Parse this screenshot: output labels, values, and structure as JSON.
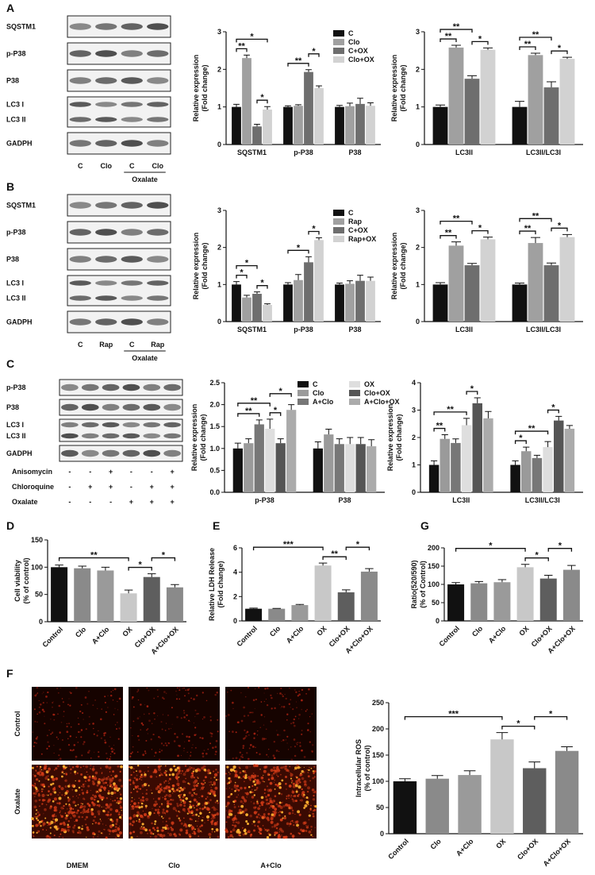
{
  "panel_labels": [
    "A",
    "B",
    "C",
    "D",
    "E",
    "G",
    "F"
  ],
  "blots": [
    {
      "rows": [
        [
          "SQSTM1"
        ],
        [
          "p-P38"
        ],
        [
          "P38"
        ],
        [
          "LC3 I",
          "LC3 II"
        ],
        [
          "GADPH"
        ]
      ],
      "lanes": [
        "C",
        "Clo",
        "C",
        "Clo"
      ],
      "treatment": "Oxalate"
    },
    {
      "rows": [
        [
          "SQSTM1"
        ],
        [
          "p-P38"
        ],
        [
          "P38"
        ],
        [
          "LC3 I",
          "LC3 II"
        ],
        [
          "GADPH"
        ]
      ],
      "lanes": [
        "C",
        "Rap",
        "C",
        "Rap"
      ],
      "treatment": "Oxalate"
    },
    {
      "rows": [
        [
          "p-P38"
        ],
        [
          "P38"
        ],
        [
          "LC3 I",
          "LC3 II"
        ],
        [
          "GADPH"
        ]
      ],
      "conditions": [
        {
          "name": "Anisomycin",
          "signs": [
            "-",
            "-",
            "+",
            "-",
            "-",
            "+"
          ]
        },
        {
          "name": "Chloroquine",
          "signs": [
            "-",
            "+",
            "+",
            "-",
            "+",
            "+"
          ]
        },
        {
          "name": "Oxalate",
          "signs": [
            "-",
            "-",
            "-",
            "+",
            "+",
            "+"
          ]
        }
      ]
    }
  ],
  "micrographs": {
    "rows": [
      "Control",
      "Oxalate"
    ],
    "columns": [
      "DMEM",
      "Clo",
      "A+Clo"
    ]
  },
  "chart_data": [
    {
      "type": "bar",
      "y_label": [
        "Relative expression",
        "(Fold change)"
      ],
      "categories": [
        "SQSTM1",
        "p-P38",
        "P38"
      ],
      "legend": true,
      "series": [
        {
          "name": "C",
          "color": "#111111",
          "values": [
            1.0,
            1.0,
            1.0
          ],
          "errors": [
            0.07,
            0.03,
            0.04
          ]
        },
        {
          "name": "Clo",
          "color": "#a0a0a0",
          "values": [
            2.3,
            1.03,
            1.02
          ],
          "errors": [
            0.08,
            0.03,
            0.08
          ]
        },
        {
          "name": "C+OX",
          "color": "#6e6e6e",
          "values": [
            0.48,
            1.93,
            1.08
          ],
          "errors": [
            0.06,
            0.06,
            0.15
          ]
        },
        {
          "name": "Clo+OX",
          "color": "#d2d2d2",
          "values": [
            0.93,
            1.5,
            1.03
          ],
          "errors": [
            0.08,
            0.06,
            0.08
          ]
        }
      ],
      "ylim": [
        0,
        3
      ],
      "yticks": [
        0,
        1,
        2,
        3
      ],
      "annotations": [
        {
          "text": "**",
          "between": [
            0,
            1
          ]
        },
        {
          "text": "*",
          "between": [
            2,
            3
          ]
        },
        {
          "text": "*",
          "between": [
            0,
            3
          ]
        },
        {
          "text": "**",
          "between": [
            4,
            6
          ]
        },
        {
          "text": "*",
          "between": [
            6,
            7
          ]
        }
      ]
    },
    {
      "type": "bar",
      "y_label": [
        "Relative expression",
        "(Fold change)"
      ],
      "categories": [
        "LC3II",
        "LC3II/LC3I"
      ],
      "legend": false,
      "series": [
        {
          "color": "#111111",
          "values": [
            1.0,
            1.0
          ],
          "errors": [
            0.05,
            0.15
          ]
        },
        {
          "color": "#a0a0a0",
          "values": [
            2.58,
            2.38
          ],
          "errors": [
            0.06,
            0.05
          ]
        },
        {
          "color": "#6e6e6e",
          "values": [
            1.75,
            1.52
          ],
          "errors": [
            0.08,
            0.15
          ]
        },
        {
          "color": "#d2d2d2",
          "values": [
            2.52,
            2.28
          ],
          "errors": [
            0.05,
            0.04
          ]
        }
      ],
      "ylim": [
        0,
        3
      ],
      "yticks": [
        0,
        1,
        2,
        3
      ],
      "annotations": [
        {
          "text": "**",
          "between": [
            0,
            1
          ]
        },
        {
          "text": "*",
          "between": [
            2,
            3
          ]
        },
        {
          "text": "**",
          "between": [
            0,
            2
          ]
        },
        {
          "text": "**",
          "between": [
            4,
            5
          ]
        },
        {
          "text": "*",
          "between": [
            6,
            7
          ]
        },
        {
          "text": "**",
          "between": [
            4,
            6
          ]
        }
      ]
    },
    {
      "type": "bar",
      "y_label": [
        "Relative expression",
        "(Fold change)"
      ],
      "categories": [
        "SQSTM1",
        "p-P38",
        "P38"
      ],
      "legend": true,
      "series": [
        {
          "name": "C",
          "color": "#111111",
          "values": [
            1.0,
            1.0,
            1.0
          ],
          "errors": [
            0.08,
            0.05,
            0.04
          ]
        },
        {
          "name": "Rap",
          "color": "#a0a0a0",
          "values": [
            0.65,
            1.12,
            1.02
          ],
          "errors": [
            0.06,
            0.15,
            0.08
          ]
        },
        {
          "name": "C+OX",
          "color": "#6e6e6e",
          "values": [
            0.75,
            1.6,
            1.1
          ],
          "errors": [
            0.05,
            0.15,
            0.15
          ]
        },
        {
          "name": "Rap+OX",
          "color": "#d2d2d2",
          "values": [
            0.45,
            2.2,
            1.1
          ],
          "errors": [
            0.03,
            0.06,
            0.1
          ]
        }
      ],
      "ylim": [
        0,
        3
      ],
      "yticks": [
        0,
        1,
        2,
        3
      ],
      "annotations": [
        {
          "text": "*",
          "between": [
            0,
            1
          ]
        },
        {
          "text": "*",
          "between": [
            2,
            3
          ]
        },
        {
          "text": "*",
          "between": [
            0,
            2
          ]
        },
        {
          "text": "*",
          "between": [
            4,
            6
          ]
        },
        {
          "text": "*",
          "between": [
            6,
            7
          ]
        }
      ]
    },
    {
      "type": "bar",
      "y_label": [
        "Relative expression",
        "(Fold change)"
      ],
      "categories": [
        "LC3II",
        "LC3II/LC3I"
      ],
      "legend": false,
      "series": [
        {
          "color": "#111111",
          "values": [
            1.0,
            1.0
          ],
          "errors": [
            0.05,
            0.04
          ]
        },
        {
          "color": "#a0a0a0",
          "values": [
            2.05,
            2.12
          ],
          "errors": [
            0.1,
            0.15
          ]
        },
        {
          "color": "#6e6e6e",
          "values": [
            1.52,
            1.52
          ],
          "errors": [
            0.05,
            0.06
          ]
        },
        {
          "color": "#d2d2d2",
          "values": [
            2.22,
            2.28
          ],
          "errors": [
            0.06,
            0.07
          ]
        }
      ],
      "ylim": [
        0,
        3
      ],
      "yticks": [
        0,
        1,
        2,
        3
      ],
      "annotations": [
        {
          "text": "**",
          "between": [
            0,
            1
          ]
        },
        {
          "text": "*",
          "between": [
            2,
            3
          ]
        },
        {
          "text": "**",
          "between": [
            0,
            2
          ]
        },
        {
          "text": "**",
          "between": [
            4,
            5
          ]
        },
        {
          "text": "*",
          "between": [
            6,
            7
          ]
        },
        {
          "text": "**",
          "between": [
            4,
            6
          ]
        }
      ]
    },
    {
      "type": "bar",
      "y_label": [
        "Relative expression",
        "(Fold change)"
      ],
      "categories": [
        "p-P38",
        "P38"
      ],
      "legend": true,
      "legend_columns": 2,
      "series": [
        {
          "name": "C",
          "color": "#111111",
          "values": [
            1.0,
            1.0
          ],
          "errors": [
            0.12,
            0.15
          ]
        },
        {
          "name": "Clo",
          "color": "#9a9a9a",
          "values": [
            1.12,
            1.32
          ],
          "errors": [
            0.1,
            0.12
          ]
        },
        {
          "name": "A+Clo",
          "color": "#777777",
          "values": [
            1.55,
            1.1
          ],
          "errors": [
            0.1,
            0.12
          ]
        },
        {
          "name": "OX",
          "color": "#dedede",
          "values": [
            1.45,
            1.1
          ],
          "errors": [
            0.22,
            0.15
          ]
        },
        {
          "name": "Clo+OX",
          "color": "#555555",
          "values": [
            1.12,
            1.1
          ],
          "errors": [
            0.1,
            0.15
          ]
        },
        {
          "name": "A+Clo+OX",
          "color": "#ababab",
          "values": [
            1.88,
            1.05
          ],
          "errors": [
            0.12,
            0.15
          ]
        }
      ],
      "ylim": [
        0,
        2.5
      ],
      "yticks": [
        {
          "value": 0,
          "label": "0.0"
        },
        0.5,
        {
          "value": 1,
          "label": "1.0"
        },
        1.5,
        {
          "value": 2,
          "label": "2.0"
        },
        2.5
      ],
      "annotations": [
        {
          "text": "**",
          "between": [
            0,
            2
          ]
        },
        {
          "text": "*",
          "between": [
            3,
            4
          ]
        },
        {
          "text": "**",
          "between": [
            0,
            3
          ]
        },
        {
          "text": "*",
          "between": [
            3,
            5
          ]
        }
      ]
    },
    {
      "type": "bar",
      "y_label": [
        "Relative expression",
        "(Fold change)"
      ],
      "categories": [
        "LC3II",
        "LC3II/LC3I"
      ],
      "legend": false,
      "series": [
        {
          "color": "#111111",
          "values": [
            1.0,
            1.0
          ],
          "errors": [
            0.15,
            0.15
          ]
        },
        {
          "color": "#9a9a9a",
          "values": [
            1.95,
            1.5
          ],
          "errors": [
            0.15,
            0.15
          ]
        },
        {
          "color": "#777777",
          "values": [
            1.8,
            1.25
          ],
          "errors": [
            0.15,
            0.1
          ]
        },
        {
          "color": "#dedede",
          "values": [
            2.45,
            1.65
          ],
          "errors": [
            0.25,
            0.2
          ]
        },
        {
          "color": "#555555",
          "values": [
            3.25,
            2.62
          ],
          "errors": [
            0.2,
            0.15
          ]
        },
        {
          "color": "#ababab",
          "values": [
            2.7,
            2.32
          ],
          "errors": [
            0.25,
            0.12
          ]
        }
      ],
      "ylim": [
        0,
        4
      ],
      "yticks": [
        0,
        1,
        2,
        3,
        4
      ],
      "annotations": [
        {
          "text": "**",
          "between": [
            0,
            1
          ]
        },
        {
          "text": "**",
          "between": [
            0,
            3
          ]
        },
        {
          "text": "*",
          "between": [
            3,
            4
          ]
        },
        {
          "text": "*",
          "between": [
            6,
            7
          ]
        },
        {
          "text": "**",
          "between": [
            6,
            9
          ]
        },
        {
          "text": "*",
          "between": [
            9,
            10
          ]
        }
      ]
    },
    {
      "type": "bar",
      "y_label": [
        "Cell viability",
        "(% of control)"
      ],
      "categories": [
        "Control",
        "Clo",
        "A+Clo",
        "OX",
        "Clo+OX",
        "A+Clo+OX"
      ],
      "values": [
        100,
        98,
        94,
        52,
        82,
        63
      ],
      "errors": [
        4,
        4,
        6,
        6,
        6,
        5
      ],
      "colors": [
        "#111111",
        "#8a8a8a",
        "#9a9a9a",
        "#c8c8c8",
        "#5e5e5e",
        "#8a8a8a"
      ],
      "ylim": [
        0,
        150
      ],
      "yticks": [
        0,
        50,
        100,
        150
      ],
      "annotations": [
        {
          "text": "*",
          "between": [
            3,
            4
          ]
        },
        {
          "text": "*",
          "between": [
            4,
            5
          ]
        },
        {
          "text": "**",
          "between": [
            0,
            3
          ]
        }
      ]
    },
    {
      "type": "bar",
      "y_label": [
        "Relative LDH Release",
        "(Fold change)"
      ],
      "categories": [
        "Control",
        "Clo",
        "A+Clo",
        "OX",
        "Clo+OX",
        "A+Clo+OX"
      ],
      "values": [
        1.0,
        1.0,
        1.3,
        4.55,
        2.35,
        4.05
      ],
      "errors": [
        0.05,
        0.03,
        0.05,
        0.2,
        0.2,
        0.25
      ],
      "colors": [
        "#111111",
        "#8a8a8a",
        "#9a9a9a",
        "#c8c8c8",
        "#5e5e5e",
        "#8a8a8a"
      ],
      "ylim": [
        0,
        6
      ],
      "yticks": [
        0,
        2,
        4,
        6
      ],
      "annotations": [
        {
          "text": "**",
          "between": [
            3,
            4
          ]
        },
        {
          "text": "*",
          "between": [
            4,
            5
          ]
        },
        {
          "text": "***",
          "between": [
            0,
            3
          ]
        }
      ]
    },
    {
      "type": "bar",
      "y_label": [
        "Ratio(520/590)",
        "(% of Control)"
      ],
      "categories": [
        "Control",
        "Clo",
        "A+Clo",
        "OX",
        "Clo+OX",
        "A+Clo+OX"
      ],
      "values": [
        100,
        103,
        106,
        147,
        116,
        140
      ],
      "errors": [
        5,
        5,
        7,
        8,
        9,
        12
      ],
      "colors": [
        "#111111",
        "#8a8a8a",
        "#9a9a9a",
        "#c8c8c8",
        "#5e5e5e",
        "#8a8a8a"
      ],
      "ylim": [
        0,
        200
      ],
      "yticks": [
        0,
        50,
        100,
        150,
        200
      ],
      "annotations": [
        {
          "text": "*",
          "between": [
            3,
            4
          ]
        },
        {
          "text": "*",
          "between": [
            4,
            5
          ]
        },
        {
          "text": "*",
          "between": [
            0,
            3
          ]
        }
      ]
    },
    {
      "type": "bar",
      "y_label": [
        "Intracellular ROS",
        "(% of control)"
      ],
      "categories": [
        "Control",
        "Clo",
        "A+Clo",
        "OX",
        "Clo+OX",
        "A+Clo+OX"
      ],
      "values": [
        100,
        105,
        112,
        180,
        125,
        158
      ],
      "errors": [
        5,
        6,
        8,
        13,
        12,
        8
      ],
      "colors": [
        "#111111",
        "#8a8a8a",
        "#9a9a9a",
        "#c8c8c8",
        "#5e5e5e",
        "#8a8a8a"
      ],
      "ylim": [
        0,
        250
      ],
      "yticks": [
        0,
        50,
        100,
        150,
        200,
        250
      ],
      "annotations": [
        {
          "text": "*",
          "between": [
            3,
            4
          ]
        },
        {
          "text": "*",
          "between": [
            4,
            5
          ]
        },
        {
          "text": "***",
          "between": [
            0,
            3
          ]
        }
      ]
    }
  ]
}
